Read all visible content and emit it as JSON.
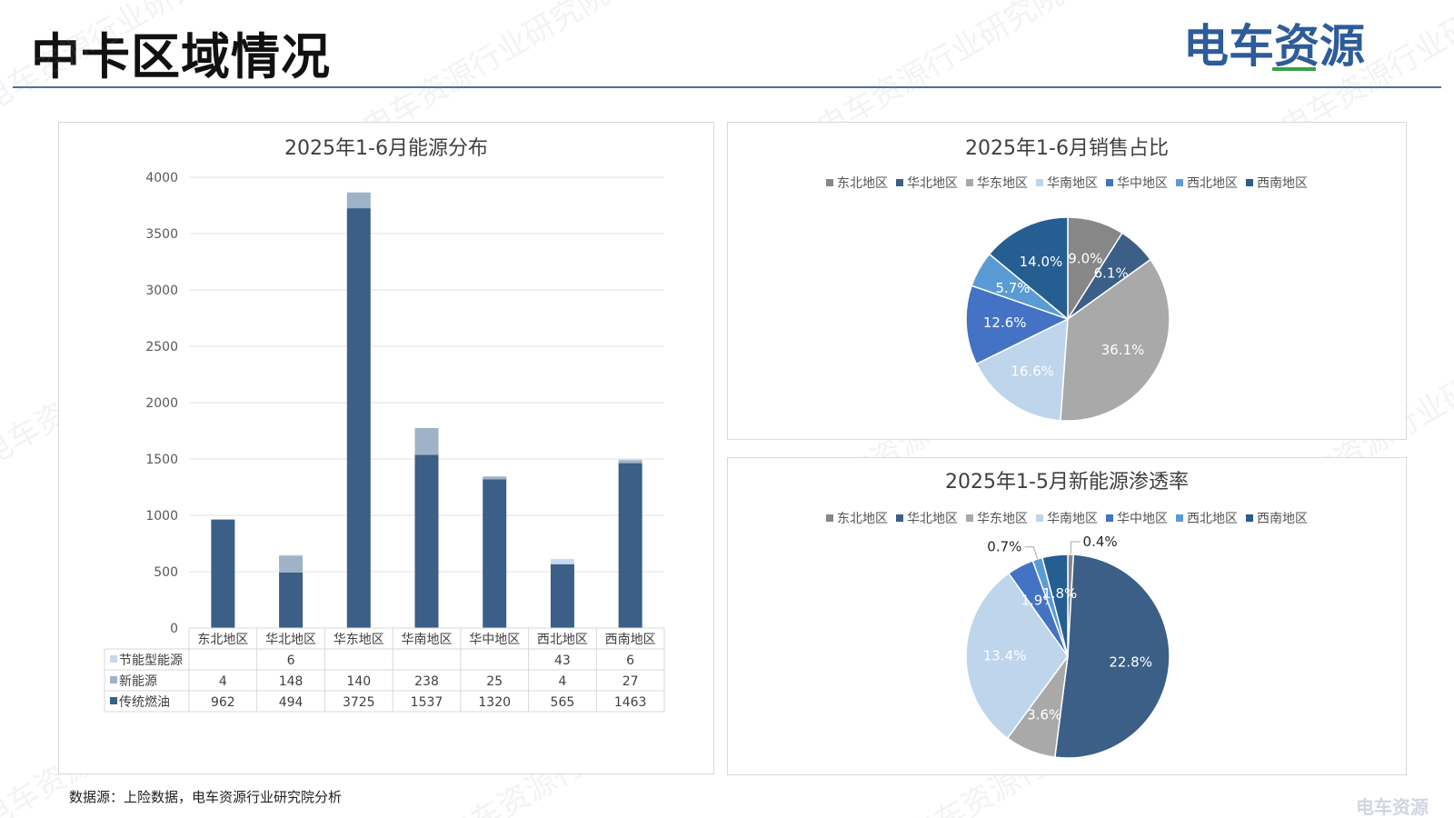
{
  "header": {
    "title": "中卡区域情况",
    "logo_text": "电车资源",
    "accent_color": "#4a6fa5",
    "logo_color": "#2e5b9a",
    "logo_green": "#3aa04a"
  },
  "watermark_text": "电车资源行业研究院",
  "footer": {
    "source": "数据源：上险数据，电车资源行业研究院分析",
    "logo_text": "电车资源"
  },
  "charts": {
    "energy": {
      "title": "2025年1-6月能源分布",
      "type": "stacked-bar-with-table",
      "categories": [
        "东北地区",
        "华北地区",
        "华东地区",
        "华南地区",
        "华中地区",
        "西北地区",
        "西南地区"
      ],
      "yticks": [
        "0",
        "500",
        "1000",
        "1500",
        "2000",
        "2500",
        "3000",
        "3500",
        "4000"
      ],
      "ylim": [
        0,
        4000
      ],
      "series": [
        {
          "name": "传统燃油",
          "color": "#3b5f86",
          "values": [
            962,
            494,
            3725,
            1537,
            1320,
            565,
            1463
          ],
          "labels": [
            "962",
            "494",
            "3725",
            "1537",
            "1320",
            "565",
            "1463"
          ]
        },
        {
          "name": "新能源",
          "color": "#9fb3c8",
          "values": [
            4,
            148,
            140,
            238,
            25,
            4,
            27
          ],
          "labels": [
            "4",
            "148",
            "140",
            "238",
            "25",
            "4",
            "27"
          ]
        },
        {
          "name": "节能型能源",
          "color": "#c6d9ee",
          "values": [
            0,
            6,
            0,
            0,
            0,
            43,
            6
          ],
          "labels": [
            "",
            "6",
            "",
            "",
            "",
            "43",
            "6"
          ]
        }
      ]
    },
    "sales_share": {
      "title": "2025年1-6月销售占比",
      "type": "pie",
      "slices": [
        {
          "name": "东北地区",
          "value": 9.0,
          "label": "9.0%",
          "color": "#878787"
        },
        {
          "name": "华北地区",
          "value": 6.1,
          "label": "6.1%",
          "color": "#3b5f86"
        },
        {
          "name": "华东地区",
          "value": 36.1,
          "label": "36.1%",
          "color": "#a9a9a9"
        },
        {
          "name": "华南地区",
          "value": 16.6,
          "label": "16.6%",
          "color": "#bfd5ec"
        },
        {
          "name": "华中地区",
          "value": 12.6,
          "label": "12.6%",
          "color": "#4472c4"
        },
        {
          "name": "西北地区",
          "value": 5.7,
          "label": "5.7%",
          "color": "#5b9bd5"
        },
        {
          "name": "西南地区",
          "value": 14.0,
          "label": "14.0%",
          "color": "#255e91"
        }
      ]
    },
    "nev_penetration": {
      "title": "2025年1-5月新能源渗透率",
      "type": "pie",
      "slices": [
        {
          "name": "东北地区",
          "value": 0.4,
          "label": "0.4%",
          "color": "#878787"
        },
        {
          "name": "华北地区",
          "value": 22.8,
          "label": "22.8%",
          "color": "#3b5f86"
        },
        {
          "name": "华东地区",
          "value": 3.6,
          "label": "3.6%",
          "color": "#a9a9a9"
        },
        {
          "name": "华南地区",
          "value": 13.4,
          "label": "13.4%",
          "color": "#bfd5ec"
        },
        {
          "name": "华中地区",
          "value": 1.9,
          "label": "1.9%",
          "color": "#4472c4"
        },
        {
          "name": "西北地区",
          "value": 0.7,
          "label": "0.7%",
          "color": "#5b9bd5"
        },
        {
          "name": "西南地区",
          "value": 1.8,
          "label": "1.8%",
          "color": "#255e91"
        }
      ]
    }
  },
  "chart_data": [
    {
      "type": "bar",
      "stacked": true,
      "title": "2025年1-6月能源分布",
      "categories": [
        "东北地区",
        "华北地区",
        "华东地区",
        "华南地区",
        "华中地区",
        "西北地区",
        "西南地区"
      ],
      "series": [
        {
          "name": "传统燃油",
          "values": [
            962,
            494,
            3725,
            1537,
            1320,
            565,
            1463
          ]
        },
        {
          "name": "新能源",
          "values": [
            4,
            148,
            140,
            238,
            25,
            4,
            27
          ]
        },
        {
          "name": "节能型能源",
          "values": [
            0,
            6,
            0,
            0,
            0,
            43,
            6
          ]
        }
      ],
      "ylim": [
        0,
        4000
      ],
      "legend": "data-table-left"
    },
    {
      "type": "pie",
      "title": "2025年1-6月销售占比",
      "categories": [
        "东北地区",
        "华北地区",
        "华东地区",
        "华南地区",
        "华中地区",
        "西北地区",
        "西南地区"
      ],
      "values": [
        9.0,
        6.1,
        36.1,
        16.6,
        12.6,
        5.7,
        14.0
      ],
      "unit": "%",
      "legend": "top"
    },
    {
      "type": "pie",
      "title": "2025年1-5月新能源渗透率",
      "categories": [
        "东北地区",
        "华北地区",
        "华东地区",
        "华南地区",
        "华中地区",
        "西北地区",
        "西南地区"
      ],
      "values": [
        0.4,
        22.8,
        3.6,
        13.4,
        1.9,
        0.7,
        1.8
      ],
      "unit": "%",
      "legend": "top"
    }
  ]
}
